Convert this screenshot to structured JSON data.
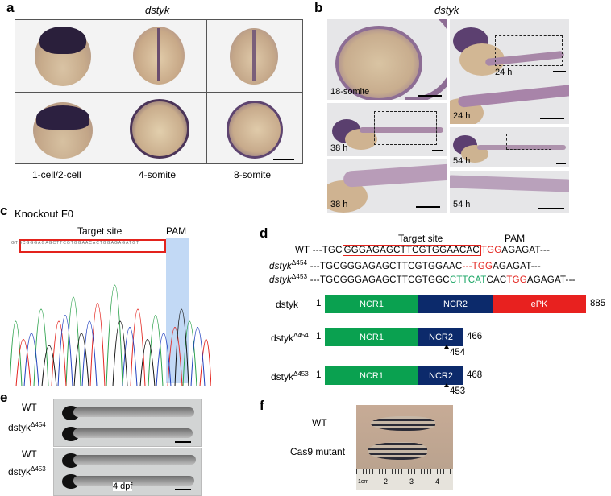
{
  "panels": {
    "a": {
      "letter": "a",
      "gene": "dstyk",
      "stages": [
        "1-cell/2-cell",
        "4-somite",
        "8-somite"
      ]
    },
    "b": {
      "letter": "b",
      "gene": "dstyk",
      "tags": [
        "18-somite",
        "24 h",
        "24 h",
        "38 h",
        "54 h",
        "38 h",
        "54 h"
      ]
    },
    "c": {
      "letter": "c",
      "title": "Knockout F0",
      "target_label": "Target site",
      "pam_label": "PAM"
    },
    "d": {
      "letter": "d",
      "target_label": "Target site",
      "pam_label": "PAM",
      "seqs": [
        {
          "name": "WT",
          "prefix": "---TGC",
          "boxed": "GGGAGAGCTTCGTGGAACAC",
          "pam": "TGG",
          "suffix": "AGAGAT---"
        },
        {
          "name": "dstyk",
          "sup": "Δ454",
          "prefix": "---TGCGGGAGAGCTTCGTGGAAC",
          "del": "---",
          "pam": "TGG",
          "suffix": "AGAGAT---"
        },
        {
          "name": "dstyk",
          "sup": "Δ453",
          "prefix": "---TGCGGGAGAGCTTCGTGGC",
          "ins": "CTTCAT",
          "mid": "CAC",
          "pam": "TGG",
          "suffix": "AGAGAT---"
        }
      ],
      "proteins": [
        {
          "name": "dstyk",
          "sup": "",
          "start": "1",
          "end": "885",
          "domains": [
            "NCR1",
            "NCR2",
            "ePK"
          ]
        },
        {
          "name": "dstyk",
          "sup": "Δ454",
          "start": "1",
          "end": "466",
          "domains": [
            "NCR1",
            "NCR2"
          ],
          "arrow": "454"
        },
        {
          "name": "dstyk",
          "sup": "Δ453",
          "start": "1",
          "end": "468",
          "domains": [
            "NCR1",
            "NCR2"
          ],
          "arrow": "453"
        }
      ]
    },
    "e": {
      "letter": "e",
      "labels": [
        "WT",
        "dstyk",
        "WT",
        "dstyk"
      ],
      "sups": [
        "Δ454",
        "Δ453"
      ],
      "caption": "4 dpf"
    },
    "f": {
      "letter": "f",
      "labels": [
        "WT",
        "Cas9 mutant"
      ],
      "ruler": [
        "1cm",
        "2",
        "3",
        "4"
      ]
    }
  },
  "colors": {
    "green": "#0aa150",
    "navy": "#0c2a6b",
    "red": "#e8211f",
    "pam_blue": "#b3cff2"
  }
}
